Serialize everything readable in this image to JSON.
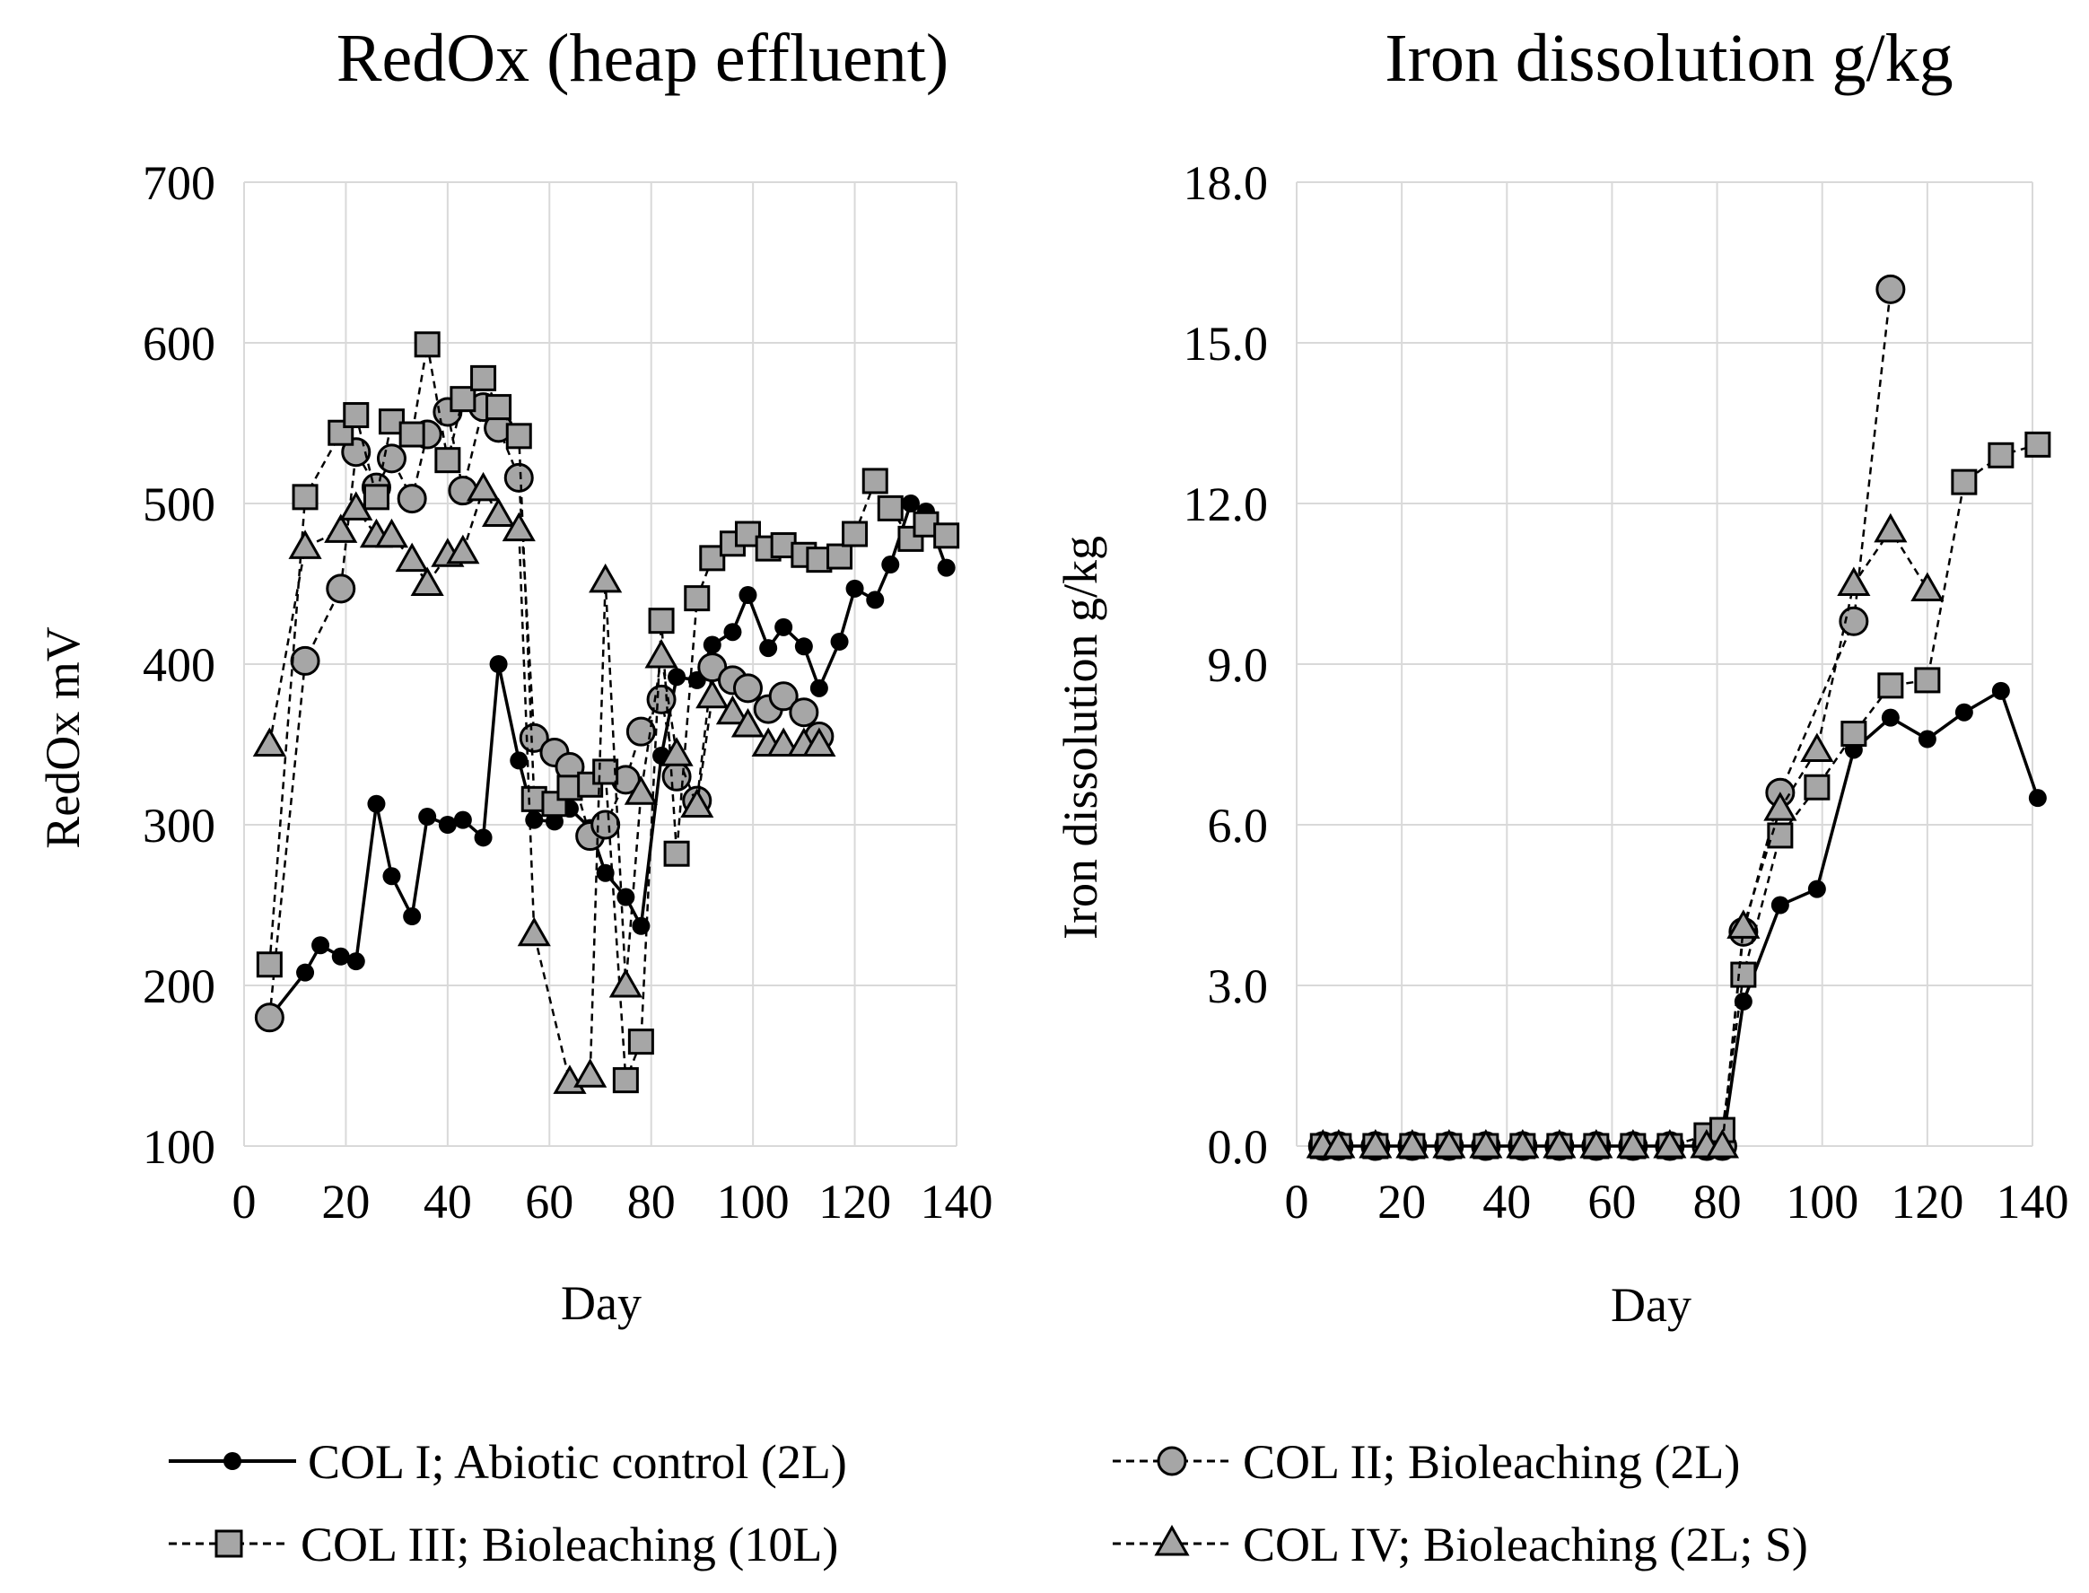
{
  "chart_data": [
    {
      "type": "line",
      "title": "RedOx (heap effluent)",
      "xlabel": "Day",
      "ylabel": "RedOx mV",
      "xlim": [
        0,
        140
      ],
      "ylim": [
        100,
        700
      ],
      "xticks": [
        "0",
        "20",
        "40",
        "60",
        "80",
        "100",
        "120",
        "140"
      ],
      "yticks": [
        "100",
        "200",
        "300",
        "400",
        "500",
        "600",
        "700"
      ],
      "grid": true,
      "series": [
        {
          "name": "COL I; Abiotic control (2L)",
          "marker": "dot",
          "x": [
            5,
            12,
            15,
            19,
            22,
            26,
            29,
            33,
            36,
            40,
            43,
            47,
            50,
            54,
            57,
            61,
            64,
            68,
            71,
            75,
            78,
            82,
            85,
            89,
            92,
            96,
            99,
            103,
            106,
            110,
            113,
            117,
            120,
            124,
            127,
            131,
            134,
            138
          ],
          "y": [
            180,
            208,
            225,
            218,
            215,
            313,
            268,
            243,
            305,
            300,
            303,
            292,
            400,
            340,
            303,
            302,
            310,
            298,
            270,
            255,
            237,
            343,
            392,
            390,
            412,
            420,
            443,
            410,
            423,
            411,
            385,
            414,
            447,
            440,
            462,
            500,
            495,
            460
          ]
        },
        {
          "name": "COL II; Bioleaching (2L)",
          "marker": "circle",
          "x": [
            5,
            12,
            19,
            22,
            26,
            29,
            33,
            36,
            40,
            43,
            47,
            50,
            54,
            57,
            61,
            64,
            68,
            71,
            75,
            78,
            82,
            85,
            89,
            92,
            96,
            99,
            103,
            106,
            110,
            113
          ],
          "y": [
            180,
            402,
            447,
            532,
            510,
            528,
            503,
            543,
            557,
            508,
            560,
            547,
            516,
            354,
            345,
            336,
            293,
            300,
            328,
            358,
            378,
            330,
            315,
            398,
            390,
            385,
            372,
            380,
            370,
            355
          ]
        },
        {
          "name": "COL III; Bioleaching (10L)",
          "marker": "square",
          "x": [
            5,
            12,
            19,
            22,
            26,
            29,
            33,
            36,
            40,
            43,
            47,
            50,
            54,
            57,
            61,
            64,
            68,
            71,
            75,
            78,
            82,
            85,
            89,
            92,
            96,
            99,
            103,
            106,
            110,
            113,
            117,
            120,
            124,
            127,
            131,
            134,
            138
          ],
          "y": [
            213,
            504,
            544,
            555,
            504,
            551,
            543,
            599,
            527,
            565,
            578,
            560,
            542,
            316,
            313,
            323,
            325,
            333,
            141,
            165,
            427,
            282,
            441,
            466,
            475,
            481,
            472,
            474,
            468,
            465,
            467,
            481,
            514,
            497,
            478,
            487,
            480
          ]
        },
        {
          "name": "COL IV; Bioleaching (2L; S)",
          "marker": "triangle",
          "x": [
            5,
            12,
            19,
            22,
            26,
            29,
            33,
            36,
            40,
            43,
            47,
            50,
            54,
            57,
            64,
            68,
            71,
            75,
            78,
            82,
            85,
            89,
            92,
            96,
            99,
            103,
            106,
            110,
            113
          ],
          "y": [
            350,
            473,
            483,
            497,
            480,
            480,
            465,
            450,
            468,
            470,
            509,
            493,
            484,
            232,
            140,
            144,
            452,
            200,
            320,
            405,
            344,
            312,
            380,
            370,
            362,
            350,
            350,
            350,
            350
          ]
        }
      ]
    },
    {
      "type": "line",
      "title": "Iron dissolution g/kg",
      "xlabel": "Day",
      "ylabel": "Iron dissolution g/kg",
      "xlim": [
        0,
        140
      ],
      "ylim": [
        0,
        18
      ],
      "xticks": [
        "0",
        "20",
        "40",
        "60",
        "80",
        "100",
        "120",
        "140"
      ],
      "yticks": [
        "0.0",
        "3.0",
        "6.0",
        "9.0",
        "12.0",
        "15.0",
        "18.0"
      ],
      "grid": true,
      "series": [
        {
          "name": "COL I; Abiotic control (2L)",
          "marker": "dot",
          "x": [
            5,
            8,
            15,
            22,
            29,
            36,
            43,
            50,
            57,
            64,
            71,
            78,
            81,
            85,
            92,
            99,
            106,
            113,
            120,
            127,
            134,
            141
          ],
          "y": [
            0,
            0,
            0,
            0,
            0,
            0,
            0,
            0,
            0,
            0,
            0,
            0,
            0,
            2.7,
            4.5,
            4.8,
            7.4,
            8.0,
            7.6,
            8.1,
            8.5,
            6.5
          ]
        },
        {
          "name": "COL II; Bioleaching (2L)",
          "marker": "circle",
          "x": [
            5,
            8,
            15,
            22,
            29,
            36,
            43,
            50,
            57,
            64,
            71,
            78,
            81,
            85,
            92,
            106,
            113
          ],
          "y": [
            0,
            0,
            0,
            0,
            0,
            0,
            0,
            0,
            0,
            0,
            0,
            0,
            0,
            4.0,
            6.6,
            9.8,
            16.0
          ]
        },
        {
          "name": "COL III; Bioleaching (10L)",
          "marker": "square",
          "x": [
            5,
            8,
            15,
            22,
            29,
            36,
            43,
            50,
            57,
            64,
            71,
            78,
            81,
            85,
            92,
            99,
            106,
            113,
            120,
            127,
            134,
            141
          ],
          "y": [
            0,
            0,
            0,
            0,
            0,
            0,
            0,
            0,
            0,
            0,
            0,
            0.2,
            0.3,
            3.2,
            5.8,
            6.7,
            7.7,
            8.6,
            8.7,
            12.4,
            12.9,
            13.1
          ]
        },
        {
          "name": "COL IV; Bioleaching (2L; S)",
          "marker": "triangle",
          "x": [
            5,
            8,
            15,
            22,
            29,
            36,
            43,
            50,
            57,
            64,
            71,
            78,
            81,
            85,
            92,
            99,
            106,
            113,
            120
          ],
          "y": [
            0,
            0,
            0,
            0,
            0,
            0,
            0,
            0,
            0,
            0,
            0,
            0,
            0,
            4.1,
            6.3,
            7.4,
            10.5,
            11.5,
            10.4
          ]
        }
      ]
    }
  ],
  "legend": [
    {
      "label": "COL I; Abiotic control (2L)",
      "marker": "dot",
      "line": "solid"
    },
    {
      "label": "COL II; Bioleaching (2L)",
      "marker": "circle",
      "line": "dashed"
    },
    {
      "label": "COL III; Bioleaching (10L)",
      "marker": "square",
      "line": "dashed"
    },
    {
      "label": "COL IV; Bioleaching (2L; S)",
      "marker": "triangle",
      "line": "dashed"
    }
  ]
}
